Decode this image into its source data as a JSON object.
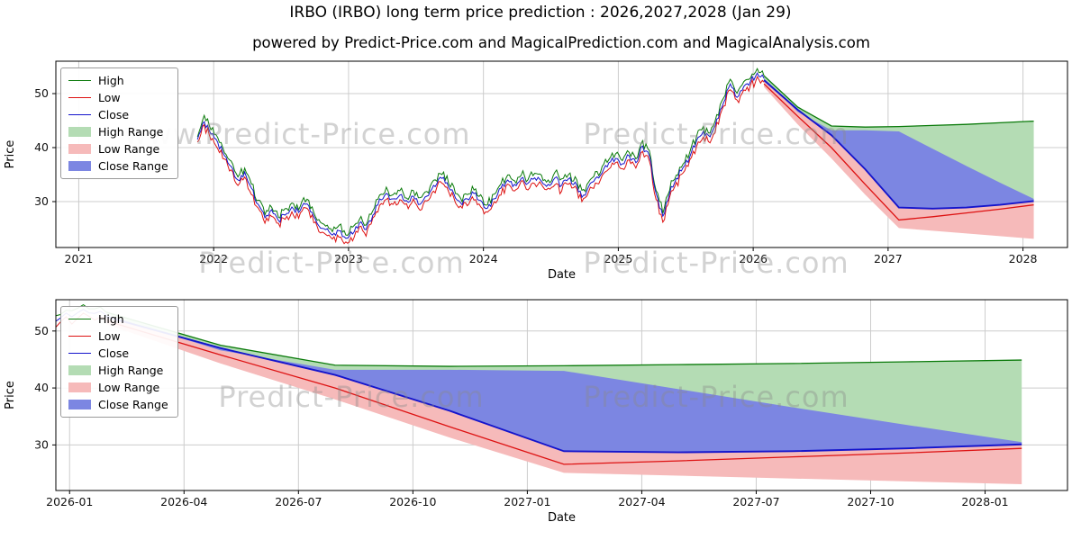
{
  "page": {
    "title": "IRBO (IRBO) long term price prediction : 2026,2027,2028 (Jan 29)",
    "subtitle": "powered by Predict-Price.com and MagicalPrediction.com and MagicalAnalysis.com"
  },
  "watermark": {
    "primary": "Predict-Price.com",
    "www": "www.Predict-Price.com"
  },
  "colors": {
    "high_line": "#0a7a0a",
    "low_line": "#dd1111",
    "close_line": "#1414cc",
    "high_fill": "#b4dcb4",
    "low_fill": "#f6baba",
    "close_fill": "#7c86e2",
    "grid": "#cccccc",
    "spine": "#000000",
    "watermark": "#8a8a8a"
  },
  "legend": [
    {
      "label": "High",
      "swatch": "line",
      "color": "#0a7a0a"
    },
    {
      "label": "Low",
      "swatch": "line",
      "color": "#dd1111"
    },
    {
      "label": "Close",
      "swatch": "line",
      "color": "#1414cc"
    },
    {
      "label": "High Range",
      "swatch": "patch",
      "color": "#b4dcb4"
    },
    {
      "label": "Low Range",
      "swatch": "patch",
      "color": "#f6baba"
    },
    {
      "label": "Close Range",
      "swatch": "patch",
      "color": "#7c86e2"
    }
  ],
  "chart_data": [
    {
      "type": "line",
      "name": "top-chart",
      "xlabel": "Date",
      "ylabel": "Price",
      "xlim": [
        2020.83,
        2028.33
      ],
      "ylim": [
        21.5,
        56
      ],
      "yticks": [
        30,
        40,
        50
      ],
      "xticks": [
        {
          "v": 2021,
          "label": "2021"
        },
        {
          "v": 2022,
          "label": "2022"
        },
        {
          "v": 2023,
          "label": "2023"
        },
        {
          "v": 2024,
          "label": "2024"
        },
        {
          "v": 2025,
          "label": "2025"
        },
        {
          "v": 2026,
          "label": "2026"
        },
        {
          "v": 2027,
          "label": "2027"
        },
        {
          "v": 2028,
          "label": "2028"
        }
      ],
      "historical": {
        "x": [
          2021.88,
          2021.93,
          2021.98,
          2022.03,
          2022.08,
          2022.13,
          2022.18,
          2022.23,
          2022.28,
          2022.33,
          2022.38,
          2022.43,
          2022.48,
          2022.53,
          2022.58,
          2022.63,
          2022.68,
          2022.73,
          2022.78,
          2022.83,
          2022.88,
          2022.93,
          2022.98,
          2023.03,
          2023.08,
          2023.13,
          2023.18,
          2023.23,
          2023.28,
          2023.33,
          2023.38,
          2023.43,
          2023.48,
          2023.53,
          2023.58,
          2023.63,
          2023.68,
          2023.73,
          2023.78,
          2023.83,
          2023.88,
          2023.93,
          2023.98,
          2024.03,
          2024.08,
          2024.13,
          2024.18,
          2024.23,
          2024.28,
          2024.33,
          2024.38,
          2024.43,
          2024.48,
          2024.53,
          2024.58,
          2024.63,
          2024.68,
          2024.73,
          2024.78,
          2024.83,
          2024.88,
          2024.93,
          2024.98,
          2025.03,
          2025.08,
          2025.13,
          2025.18,
          2025.23,
          2025.28,
          2025.33,
          2025.38,
          2025.43,
          2025.48,
          2025.53,
          2025.58,
          2025.63,
          2025.68,
          2025.73,
          2025.78,
          2025.83,
          2025.88,
          2025.93,
          2025.98,
          2026.03,
          2026.08
        ],
        "close": [
          41.5,
          44.8,
          42.5,
          41.0,
          38.5,
          36.5,
          34.0,
          35.5,
          32.5,
          29.5,
          27.0,
          28.5,
          26.5,
          27.5,
          29.0,
          28.0,
          29.5,
          28.0,
          25.5,
          24.8,
          23.8,
          24.6,
          23.2,
          24.0,
          26.0,
          24.8,
          27.5,
          30.5,
          31.5,
          30.5,
          31.2,
          30.2,
          31.0,
          29.5,
          31.0,
          33.0,
          34.5,
          33.5,
          31.5,
          29.8,
          30.5,
          31.5,
          30.2,
          28.8,
          30.5,
          32.5,
          34.0,
          33.2,
          34.3,
          33.4,
          34.4,
          33.8,
          33.2,
          34.4,
          33.0,
          34.2,
          33.6,
          30.8,
          32.8,
          34.3,
          35.3,
          37.2,
          38.0,
          37.0,
          38.5,
          37.2,
          40.3,
          38.5,
          31.5,
          27.3,
          31.5,
          34.3,
          36.3,
          38.3,
          41.3,
          43.0,
          42.0,
          45.3,
          48.3,
          51.8,
          49.3,
          51.3,
          52.3,
          53.8,
          52.8
        ]
      },
      "prediction": {
        "x": [
          2026.08,
          2026.33,
          2026.58,
          2026.83,
          2027.08,
          2027.33,
          2027.58,
          2027.83,
          2028.08
        ],
        "high": [
          53.3,
          47.5,
          44.0,
          43.8,
          43.9,
          44.1,
          44.3,
          44.6,
          44.9
        ],
        "close_upper": [
          52.8,
          46.6,
          43.2,
          43.2,
          43.0,
          39.8,
          36.6,
          33.5,
          30.5
        ],
        "close": [
          52.5,
          47.0,
          42.3,
          36.0,
          28.9,
          28.7,
          28.9,
          29.4,
          30.1
        ],
        "low": [
          51.8,
          45.8,
          40.0,
          33.2,
          26.6,
          27.2,
          27.9,
          28.6,
          29.4
        ],
        "low_lower": [
          51.2,
          44.3,
          38.0,
          31.3,
          25.1,
          24.6,
          24.1,
          23.6,
          23.1
        ]
      }
    },
    {
      "type": "line",
      "name": "bottom-chart",
      "xlabel": "Date",
      "ylabel": "Price",
      "series_from": 0,
      "xlim": [
        2025.97,
        2028.18
      ],
      "ylim": [
        22,
        55.5
      ],
      "yticks": [
        30,
        40,
        50
      ],
      "xticks": [
        {
          "v": 2026.0,
          "label": "2026-01"
        },
        {
          "v": 2026.25,
          "label": "2026-04"
        },
        {
          "v": 2026.5,
          "label": "2026-07"
        },
        {
          "v": 2026.75,
          "label": "2026-10"
        },
        {
          "v": 2027.0,
          "label": "2027-01"
        },
        {
          "v": 2027.25,
          "label": "2027-04"
        },
        {
          "v": 2027.5,
          "label": "2027-07"
        },
        {
          "v": 2027.75,
          "label": "2027-10"
        },
        {
          "v": 2028.0,
          "label": "2028-01"
        }
      ]
    }
  ]
}
